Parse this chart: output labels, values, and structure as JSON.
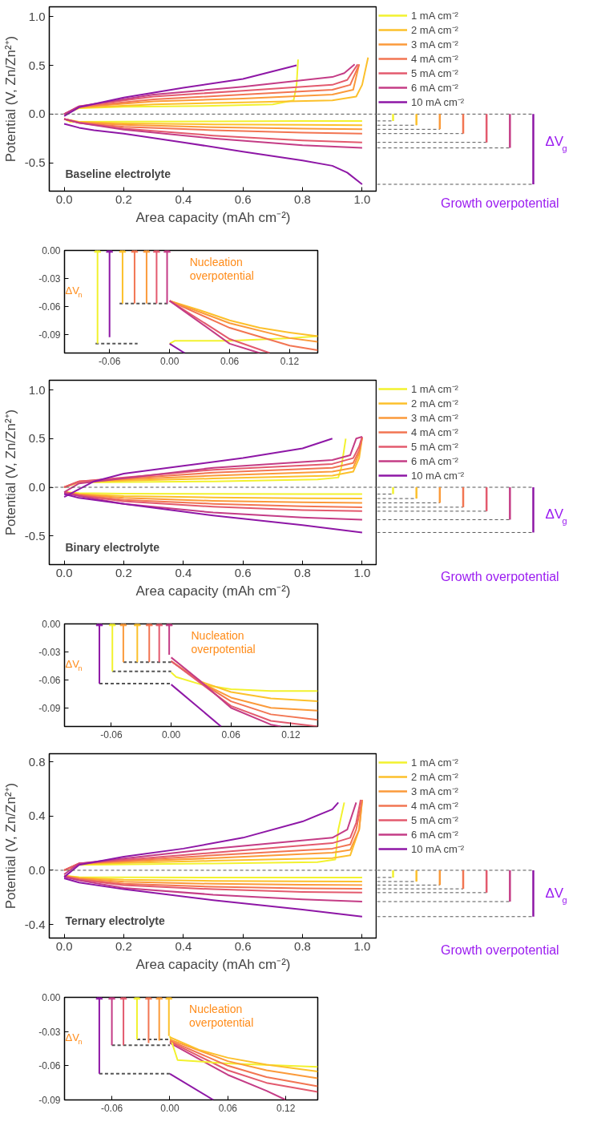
{
  "chart_data": [
    {
      "type": "line",
      "xlabel": "Area capacity (mAh cm⁻²)",
      "ylabel": "Potential (V, Zn/Zn²⁺)",
      "xlim": [
        -0.05,
        1.05
      ],
      "ylim": [
        -0.79,
        1.1
      ],
      "xticks": [
        {
          "value": 0,
          "label": "0.0"
        },
        0.2,
        0.4,
        0.6,
        0.8,
        {
          "value": 1,
          "label": "1.0"
        }
      ],
      "yticks": [
        -0.5,
        {
          "value": 0,
          "label": "0.0"
        },
        0.5,
        {
          "value": 1,
          "label": "1.0"
        }
      ],
      "legend": "right",
      "line_style": "solid",
      "annotations": [
        "Baseline electrolyte",
        "ΔV$_{g}$",
        "Growth overpotential"
      ],
      "ref_lines": [
        {
          "axis": "y",
          "value": 0,
          "line_style": "dashed",
          "color": "#555555"
        }
      ],
      "series": [
        {
          "name": "1 mA cm⁻²",
          "color": "#f2f22e",
          "x": [
            0,
            0.02,
            0.2,
            0.5,
            0.8,
            1.0,
            null,
            0,
            0.05,
            0.2,
            0.5,
            0.7,
            0.77,
            0.78,
            0.785
          ],
          "values": [
            -0.05,
            -0.08,
            -0.078,
            -0.075,
            -0.072,
            -0.07,
            null,
            0,
            0.06,
            0.075,
            0.085,
            0.1,
            0.14,
            0.3,
            0.56
          ]
        },
        {
          "name": "2 mA cm⁻²",
          "color": "#fcc02b",
          "x": [
            0,
            0.05,
            0.2,
            0.5,
            0.8,
            1.0,
            null,
            0,
            0.05,
            0.3,
            0.6,
            0.9,
            0.98,
            1.0,
            1.02
          ],
          "values": [
            -0.05,
            -0.08,
            -0.095,
            -0.105,
            -0.11,
            -0.114,
            null,
            0,
            0.065,
            0.1,
            0.12,
            0.14,
            0.18,
            0.3,
            0.58
          ]
        },
        {
          "name": "3 mA cm⁻²",
          "color": "#fb9a3a",
          "x": [
            0,
            0.05,
            0.2,
            0.5,
            0.8,
            1.0,
            null,
            0,
            0.05,
            0.3,
            0.6,
            0.9,
            0.97,
            0.99
          ],
          "values": [
            -0.05,
            -0.085,
            -0.11,
            -0.135,
            -0.15,
            -0.156,
            null,
            0,
            0.07,
            0.13,
            0.16,
            0.2,
            0.25,
            0.51
          ]
        },
        {
          "name": "4 mA cm⁻²",
          "color": "#f27552",
          "x": [
            0,
            0.05,
            0.2,
            0.5,
            0.8,
            1.0,
            null,
            0,
            0.05,
            0.3,
            0.6,
            0.9,
            0.96,
            0.99
          ],
          "values": [
            -0.05,
            -0.09,
            -0.13,
            -0.165,
            -0.19,
            -0.2,
            null,
            0,
            0.075,
            0.15,
            0.2,
            0.25,
            0.3,
            0.51
          ]
        },
        {
          "name": "5 mA cm⁻²",
          "color": "#e35a6e",
          "x": [
            0,
            0.05,
            0.2,
            0.5,
            0.8,
            1.0,
            null,
            0,
            0.05,
            0.3,
            0.6,
            0.9,
            0.95,
            0.985
          ],
          "values": [
            -0.05,
            -0.09,
            -0.15,
            -0.22,
            -0.27,
            -0.29,
            null,
            0,
            0.08,
            0.18,
            0.24,
            0.3,
            0.35,
            0.51
          ]
        },
        {
          "name": "6 mA cm⁻²",
          "color": "#c43c86",
          "x": [
            0,
            0.05,
            0.2,
            0.5,
            0.8,
            1.0,
            null,
            0,
            0.05,
            0.3,
            0.6,
            0.9,
            0.94,
            0.975
          ],
          "values": [
            -0.05,
            -0.09,
            -0.16,
            -0.25,
            -0.32,
            -0.347,
            null,
            0,
            0.08,
            0.2,
            0.28,
            0.38,
            0.42,
            0.51
          ]
        },
        {
          "name": "10 mA cm⁻²",
          "color": "#8e17a6",
          "x": [
            0,
            0.05,
            0.1,
            0.2,
            0.4,
            0.6,
            0.8,
            0.9,
            0.95,
            1.0,
            null,
            0,
            0.05,
            0.2,
            0.4,
            0.6,
            0.78
          ],
          "values": [
            -0.1,
            -0.14,
            -0.165,
            -0.2,
            -0.29,
            -0.385,
            -0.475,
            -0.53,
            -0.6,
            -0.72,
            null,
            -0.02,
            0.07,
            0.17,
            0.27,
            0.36,
            0.5
          ]
        }
      ]
    },
    {
      "type": "line",
      "xlim": [
        -0.105,
        0.148
      ],
      "ylim": [
        -0.11,
        0
      ],
      "xticks": [
        {
          "value": -0.06,
          "label": "-0.06"
        },
        {
          "value": 0,
          "label": "0.00"
        },
        {
          "value": 0.06,
          "label": "0.06"
        },
        {
          "value": 0.12,
          "label": "0.12"
        }
      ],
      "yticks": [
        {
          "value": 0,
          "label": "0.00"
        },
        {
          "value": -0.03,
          "label": "-0.03"
        },
        {
          "value": -0.06,
          "label": "-0.06"
        },
        {
          "value": -0.09,
          "label": "-0.09"
        }
      ],
      "line_style": "solid",
      "annotations": [
        "ΔV$_{n}$",
        "Nucleation overpotential"
      ],
      "series": [
        {
          "color": "#f2f22e",
          "x": [
            0,
            0.005,
            0.06,
            0.12,
            0.148
          ],
          "values": [
            -0.1,
            -0.097,
            -0.097,
            -0.094,
            -0.092
          ]
        },
        {
          "color": "#8e17a6",
          "x": [
            0,
            0.015
          ],
          "values": [
            -0.1,
            -0.11
          ]
        },
        {
          "color": "#fcc02b",
          "x": [
            0,
            0.03,
            0.06,
            0.09,
            0.12,
            0.148
          ],
          "values": [
            -0.054,
            -0.064,
            -0.075,
            -0.083,
            -0.088,
            -0.092
          ]
        },
        {
          "color": "#f27552",
          "x": [
            0,
            0.06,
            0.12,
            0.148
          ],
          "values": [
            -0.054,
            -0.083,
            -0.102,
            -0.107
          ]
        },
        {
          "color": "#fb9a3a",
          "x": [
            0,
            0.06,
            0.12,
            0.148
          ],
          "values": [
            -0.054,
            -0.078,
            -0.094,
            -0.098
          ]
        },
        {
          "color": "#e35a6e",
          "x": [
            0,
            0.06,
            0.1
          ],
          "values": [
            -0.054,
            -0.095,
            -0.11
          ]
        },
        {
          "color": "#c43c86",
          "x": [
            0,
            0.06,
            0.09
          ],
          "values": [
            -0.054,
            -0.1,
            -0.11
          ]
        },
        {
          "color": "#555555",
          "line_style": "dashed",
          "x": [
            -0.074,
            -0.032
          ],
          "values": [
            -0.1,
            -0.1
          ]
        },
        {
          "color": "#555555",
          "line_style": "dashed",
          "x": [
            -0.05,
            0
          ],
          "values": [
            -0.057,
            -0.057
          ]
        },
        {
          "color": "#f2f22e",
          "x": [
            -0.072,
            -0.072
          ],
          "values": [
            -0.1,
            0
          ]
        },
        {
          "color": "#8e17a6",
          "x": [
            -0.06,
            -0.06
          ],
          "values": [
            -0.093,
            0
          ]
        },
        {
          "color": "#fcc02b",
          "x": [
            -0.047,
            -0.047
          ],
          "values": [
            -0.057,
            0
          ]
        },
        {
          "color": "#f27552",
          "x": [
            -0.035,
            -0.035
          ],
          "values": [
            -0.057,
            0
          ]
        },
        {
          "color": "#fb9a3a",
          "x": [
            -0.023,
            -0.023
          ],
          "values": [
            -0.057,
            0
          ]
        },
        {
          "color": "#e35a6e",
          "x": [
            -0.013,
            -0.013
          ],
          "values": [
            -0.057,
            0
          ]
        },
        {
          "color": "#c43c86",
          "x": [
            -0.0025,
            -0.0025
          ],
          "values": [
            -0.057,
            0
          ]
        }
      ]
    },
    {
      "type": "line",
      "xlabel": "Area capacity (mAh cm⁻²)",
      "ylabel": "Potential (V, Zn/Zn²⁺)",
      "xlim": [
        -0.05,
        1.05
      ],
      "ylim": [
        -0.795,
        1.1
      ],
      "xticks": [
        {
          "value": 0,
          "label": "0.0"
        },
        0.2,
        0.4,
        0.6,
        0.8,
        {
          "value": 1,
          "label": "1.0"
        }
      ],
      "yticks": [
        -0.5,
        {
          "value": 0,
          "label": "0.0"
        },
        0.5,
        {
          "value": 1,
          "label": "1.0"
        }
      ],
      "legend": "right",
      "line_style": "solid",
      "annotations": [
        "Binary electrolyte",
        "ΔV$_{g}$",
        "Growth overpotential"
      ],
      "ref_lines": [
        {
          "axis": "y",
          "value": 0,
          "line_style": "dashed",
          "color": "#555555"
        }
      ],
      "series": [
        {
          "name": "1 mA cm⁻²",
          "color": "#f2f22e",
          "x": [
            0,
            0.05,
            0.2,
            0.5,
            0.8,
            1.0,
            null,
            0,
            0.05,
            0.5,
            0.85,
            0.92,
            0.93,
            0.945
          ],
          "values": [
            -0.05,
            -0.06,
            -0.065,
            -0.068,
            -0.07,
            -0.07,
            null,
            0,
            0.05,
            0.06,
            0.08,
            0.1,
            0.2,
            0.5
          ]
        },
        {
          "name": "2 mA cm⁻²",
          "color": "#fcc02b",
          "x": [
            0,
            0.05,
            0.2,
            0.5,
            0.8,
            1.0,
            null,
            0,
            0.05,
            0.5,
            0.9,
            0.97,
            0.99,
            1.0
          ],
          "values": [
            -0.05,
            -0.07,
            -0.09,
            -0.105,
            -0.113,
            -0.116,
            null,
            0,
            0.055,
            0.09,
            0.12,
            0.16,
            0.3,
            0.51
          ]
        },
        {
          "name": "3 mA cm⁻²",
          "color": "#fb9a3a",
          "x": [
            0,
            0.05,
            0.2,
            0.5,
            0.8,
            1.0,
            null,
            0,
            0.05,
            0.5,
            0.9,
            0.97,
            0.99,
            1.0
          ],
          "values": [
            -0.05,
            -0.075,
            -0.11,
            -0.14,
            -0.155,
            -0.16,
            null,
            0,
            0.06,
            0.12,
            0.16,
            0.2,
            0.35,
            0.51
          ]
        },
        {
          "name": "4 mA cm⁻²",
          "color": "#f27552",
          "x": [
            0,
            0.05,
            0.2,
            0.5,
            0.8,
            1.0,
            null,
            0,
            0.05,
            0.5,
            0.9,
            0.97,
            0.99,
            1.0
          ],
          "values": [
            -0.05,
            -0.08,
            -0.13,
            -0.17,
            -0.195,
            -0.205,
            null,
            0,
            0.06,
            0.15,
            0.2,
            0.25,
            0.38,
            0.51
          ]
        },
        {
          "name": "5 mA cm⁻²",
          "color": "#e35a6e",
          "x": [
            0,
            0.05,
            0.2,
            0.5,
            0.8,
            1.0,
            null,
            0,
            0.05,
            0.5,
            0.9,
            0.97,
            0.99,
            1.0
          ],
          "values": [
            -0.05,
            -0.085,
            -0.145,
            -0.2,
            -0.235,
            -0.246,
            null,
            0,
            0.06,
            0.18,
            0.24,
            0.3,
            0.42,
            0.52
          ]
        },
        {
          "name": "6 mA cm⁻²",
          "color": "#c43c86",
          "x": [
            0,
            0.05,
            0.2,
            0.5,
            0.8,
            1.0,
            null,
            0,
            0.05,
            0.5,
            0.9,
            0.96,
            0.98,
            1.0
          ],
          "values": [
            -0.06,
            -0.09,
            -0.17,
            -0.26,
            -0.31,
            -0.333,
            null,
            -0.05,
            0.04,
            0.2,
            0.28,
            0.33,
            0.5,
            0.52
          ]
        },
        {
          "name": "10 mA cm⁻²",
          "color": "#8e17a6",
          "x": [
            0,
            0.05,
            0.2,
            0.5,
            0.8,
            1.0,
            null,
            0,
            0.05,
            0.1,
            0.2,
            0.4,
            0.6,
            0.8,
            0.9
          ],
          "values": [
            -0.07,
            -0.11,
            -0.17,
            -0.29,
            -0.39,
            -0.465,
            null,
            -0.1,
            -0.02,
            0.06,
            0.14,
            0.22,
            0.3,
            0.4,
            0.5
          ]
        }
      ]
    },
    {
      "type": "line",
      "xlim": [
        -0.107,
        0.147
      ],
      "ylim": [
        -0.11,
        0
      ],
      "xticks": [
        {
          "value": -0.06,
          "label": "-0.06"
        },
        {
          "value": 0,
          "label": "0.00"
        },
        {
          "value": 0.06,
          "label": "0.06"
        },
        {
          "value": 0.12,
          "label": "0.12"
        }
      ],
      "yticks": [
        {
          "value": 0,
          "label": "0.00"
        },
        {
          "value": -0.03,
          "label": "-0.03"
        },
        {
          "value": -0.06,
          "label": "-0.06"
        },
        {
          "value": -0.09,
          "label": "-0.09"
        }
      ],
      "line_style": "solid",
      "annotations": [
        "ΔV$_{n}$",
        "Nucleation overpotential"
      ],
      "series": [
        {
          "color": "#8e17a6",
          "x": [
            0,
            0.05
          ],
          "values": [
            -0.065,
            -0.11
          ]
        },
        {
          "color": "#f2f22e",
          "x": [
            0,
            0.005,
            0.03,
            0.06,
            0.1,
            0.147
          ],
          "values": [
            -0.052,
            -0.057,
            -0.065,
            -0.07,
            -0.072,
            -0.072
          ]
        },
        {
          "color": "#fb9a3a",
          "x": [
            0,
            0.03,
            0.06,
            0.1,
            0.147
          ],
          "values": [
            -0.04,
            -0.063,
            -0.079,
            -0.09,
            -0.093
          ]
        },
        {
          "color": "#fcc02b",
          "x": [
            0,
            0.03,
            0.06,
            0.1,
            0.147
          ],
          "values": [
            -0.04,
            -0.062,
            -0.073,
            -0.08,
            -0.083
          ]
        },
        {
          "color": "#f27552",
          "x": [
            0,
            0.03,
            0.06,
            0.1,
            0.147
          ],
          "values": [
            -0.04,
            -0.063,
            -0.083,
            -0.097,
            -0.103
          ]
        },
        {
          "color": "#e35a6e",
          "x": [
            0,
            0.03,
            0.06,
            0.1,
            0.147
          ],
          "values": [
            -0.04,
            -0.064,
            -0.088,
            -0.104,
            -0.11
          ]
        },
        {
          "color": "#c43c86",
          "x": [
            0,
            0.03,
            0.06,
            0.1,
            0.11
          ],
          "values": [
            -0.036,
            -0.062,
            -0.09,
            -0.108,
            -0.11
          ]
        },
        {
          "color": "#555555",
          "line_style": "dashed",
          "x": [
            -0.072,
            0
          ],
          "values": [
            -0.064,
            -0.064
          ]
        },
        {
          "color": "#555555",
          "line_style": "dashed",
          "x": [
            -0.059,
            0
          ],
          "values": [
            -0.051,
            -0.051
          ]
        },
        {
          "color": "#555555",
          "line_style": "dashed",
          "x": [
            -0.048,
            0
          ],
          "values": [
            -0.041,
            -0.041
          ]
        },
        {
          "color": "#8e17a6",
          "x": [
            -0.072,
            -0.072
          ],
          "values": [
            -0.064,
            0
          ]
        },
        {
          "color": "#f2f22e",
          "x": [
            -0.059,
            -0.059
          ],
          "values": [
            -0.051,
            0
          ]
        },
        {
          "color": "#fb9a3a",
          "x": [
            -0.048,
            -0.048
          ],
          "values": [
            -0.041,
            0
          ]
        },
        {
          "color": "#fcc02b",
          "x": [
            -0.034,
            -0.034
          ],
          "values": [
            -0.041,
            0
          ]
        },
        {
          "color": "#f27552",
          "x": [
            -0.022,
            -0.022
          ],
          "values": [
            -0.041,
            0
          ]
        },
        {
          "color": "#e35a6e",
          "x": [
            -0.012,
            -0.012
          ],
          "values": [
            -0.041,
            0
          ]
        },
        {
          "color": "#c43c86",
          "x": [
            -0.002,
            -0.002
          ],
          "values": [
            -0.033,
            0
          ]
        }
      ]
    },
    {
      "type": "line",
      "xlabel": "Area capacity (mAh cm⁻²)",
      "ylabel": "Potential (V, Zn/Zn²⁺)",
      "xlim": [
        -0.05,
        1.05
      ],
      "ylim": [
        -0.5,
        0.86
      ],
      "xticks": [
        {
          "value": 0,
          "label": "0.0"
        },
        0.2,
        0.4,
        0.6,
        0.8,
        {
          "value": 1,
          "label": "1.0"
        }
      ],
      "yticks": [
        -0.4,
        {
          "value": 0,
          "label": "0.0"
        },
        0.4,
        0.8
      ],
      "legend": "right",
      "line_style": "solid",
      "annotations": [
        "Ternary electrolyte",
        "ΔV$_{g}$",
        "Growth overpotential"
      ],
      "ref_lines": [
        {
          "axis": "y",
          "value": 0,
          "line_style": "dashed",
          "color": "#555555"
        }
      ],
      "series": [
        {
          "name": "1 mA cm⁻²",
          "color": "#f2f22e",
          "x": [
            0,
            0.05,
            0.2,
            0.5,
            0.8,
            1.0,
            null,
            0,
            0.05,
            0.5,
            0.85,
            0.91,
            0.92,
            0.94
          ],
          "values": [
            -0.04,
            -0.05,
            -0.052,
            -0.053,
            -0.053,
            -0.053,
            null,
            0,
            0.04,
            0.05,
            0.06,
            0.08,
            0.3,
            0.5
          ]
        },
        {
          "name": "2 mA cm⁻²",
          "color": "#fcc02b",
          "x": [
            0,
            0.05,
            0.2,
            0.5,
            0.8,
            1.0,
            null,
            0,
            0.05,
            0.5,
            0.9,
            0.96,
            0.99,
            1.0
          ],
          "values": [
            -0.04,
            -0.055,
            -0.07,
            -0.078,
            -0.082,
            -0.083,
            null,
            0,
            0.045,
            0.07,
            0.09,
            0.11,
            0.3,
            0.51
          ]
        },
        {
          "name": "3 mA cm⁻²",
          "color": "#fb9a3a",
          "x": [
            0,
            0.05,
            0.2,
            0.5,
            0.8,
            1.0,
            null,
            0,
            0.05,
            0.5,
            0.9,
            0.96,
            0.99,
            1.0
          ],
          "values": [
            -0.04,
            -0.06,
            -0.085,
            -0.1,
            -0.107,
            -0.109,
            null,
            0,
            0.05,
            0.09,
            0.13,
            0.15,
            0.3,
            0.52
          ]
        },
        {
          "name": "4 mA cm⁻²",
          "color": "#f27552",
          "x": [
            0,
            0.05,
            0.2,
            0.5,
            0.8,
            1.0,
            null,
            0,
            0.05,
            0.5,
            0.9,
            0.96,
            0.98,
            1.0
          ],
          "values": [
            -0.045,
            -0.065,
            -0.1,
            -0.122,
            -0.133,
            -0.137,
            null,
            0,
            0.05,
            0.11,
            0.16,
            0.19,
            0.3,
            0.52
          ]
        },
        {
          "name": "5 mA cm⁻²",
          "color": "#e35a6e",
          "x": [
            0,
            0.05,
            0.2,
            0.5,
            0.8,
            1.0,
            null,
            0,
            0.05,
            0.5,
            0.9,
            0.96,
            0.98,
            0.995
          ],
          "values": [
            -0.045,
            -0.07,
            -0.11,
            -0.14,
            -0.16,
            -0.165,
            null,
            0,
            0.05,
            0.13,
            0.2,
            0.24,
            0.35,
            0.52
          ]
        },
        {
          "name": "6 mA cm⁻²",
          "color": "#c43c86",
          "x": [
            0,
            0.05,
            0.2,
            0.5,
            0.8,
            1.0,
            null,
            0,
            0.05,
            0.5,
            0.9,
            0.95,
            0.98
          ],
          "values": [
            -0.05,
            -0.075,
            -0.13,
            -0.18,
            -0.215,
            -0.231,
            null,
            -0.03,
            0.05,
            0.16,
            0.24,
            0.3,
            0.5
          ]
        },
        {
          "name": "10 mA cm⁻²",
          "color": "#8e17a6",
          "x": [
            0,
            0.05,
            0.2,
            0.5,
            0.8,
            1.0,
            null,
            0,
            0.05,
            0.2,
            0.4,
            0.6,
            0.8,
            0.9,
            0.92
          ],
          "values": [
            -0.06,
            -0.09,
            -0.14,
            -0.22,
            -0.29,
            -0.342,
            null,
            -0.05,
            0.04,
            0.1,
            0.16,
            0.24,
            0.36,
            0.45,
            0.5
          ]
        }
      ]
    },
    {
      "type": "line",
      "xlim": [
        -0.109,
        0.153
      ],
      "ylim": [
        -0.09,
        0
      ],
      "xticks": [
        {
          "value": -0.06,
          "label": "-0.06"
        },
        {
          "value": 0,
          "label": "0.00"
        },
        {
          "value": 0.06,
          "label": "0.06"
        },
        {
          "value": 0.12,
          "label": "0.12"
        }
      ],
      "yticks": [
        {
          "value": 0,
          "label": "0.00"
        },
        {
          "value": -0.03,
          "label": "-0.03"
        },
        {
          "value": -0.06,
          "label": "-0.06"
        },
        {
          "value": -0.09,
          "label": "-0.09"
        }
      ],
      "line_style": "solid",
      "annotations": [
        "ΔV$_{n}$",
        "Nucleation overpotential"
      ],
      "series": [
        {
          "color": "#8e17a6",
          "x": [
            0,
            0.045
          ],
          "values": [
            -0.067,
            -0.09
          ]
        },
        {
          "color": "#c43c86",
          "x": [
            0,
            0.06,
            0.1,
            0.12
          ],
          "values": [
            -0.04,
            -0.068,
            -0.082,
            -0.09
          ]
        },
        {
          "color": "#e35a6e",
          "x": [
            0,
            0.06,
            0.1,
            0.153
          ],
          "values": [
            -0.039,
            -0.064,
            -0.075,
            -0.083
          ]
        },
        {
          "color": "#f2f22e",
          "x": [
            0,
            0.008,
            0.06,
            0.153
          ],
          "values": [
            -0.034,
            -0.055,
            -0.058,
            -0.061
          ]
        },
        {
          "color": "#f27552",
          "x": [
            0,
            0.06,
            0.1,
            0.153
          ],
          "values": [
            -0.038,
            -0.06,
            -0.07,
            -0.078
          ]
        },
        {
          "color": "#fb9a3a",
          "x": [
            0,
            0.06,
            0.1,
            0.153
          ],
          "values": [
            -0.037,
            -0.056,
            -0.064,
            -0.071
          ]
        },
        {
          "color": "#fcc02b",
          "x": [
            0,
            0.03,
            0.06,
            0.1,
            0.153
          ],
          "values": [
            -0.035,
            -0.046,
            -0.053,
            -0.059,
            -0.065
          ]
        },
        {
          "color": "#555555",
          "line_style": "dashed",
          "x": [
            -0.073,
            0
          ],
          "values": [
            -0.067,
            -0.067
          ]
        },
        {
          "color": "#555555",
          "line_style": "dashed",
          "x": [
            -0.06,
            0
          ],
          "values": [
            -0.042,
            -0.042
          ]
        },
        {
          "color": "#555555",
          "line_style": "dashed",
          "x": [
            -0.034,
            0
          ],
          "values": [
            -0.037,
            -0.037
          ]
        },
        {
          "color": "#8e17a6",
          "x": [
            -0.073,
            -0.073
          ],
          "values": [
            -0.067,
            0
          ]
        },
        {
          "color": "#c43c86",
          "x": [
            -0.06,
            -0.06
          ],
          "values": [
            -0.042,
            0
          ]
        },
        {
          "color": "#e35a6e",
          "x": [
            -0.048,
            -0.048
          ],
          "values": [
            -0.042,
            0
          ]
        },
        {
          "color": "#f2f22e",
          "x": [
            -0.034,
            -0.034
          ],
          "values": [
            -0.037,
            0
          ]
        },
        {
          "color": "#f27552",
          "x": [
            -0.022,
            -0.022
          ],
          "values": [
            -0.04,
            0
          ]
        },
        {
          "color": "#fb9a3a",
          "x": [
            -0.011,
            -0.011
          ],
          "values": [
            -0.038,
            0
          ]
        },
        {
          "color": "#fcc02b",
          "x": [
            -0.001,
            -0.001
          ],
          "values": [
            -0.034,
            0
          ]
        }
      ]
    }
  ]
}
